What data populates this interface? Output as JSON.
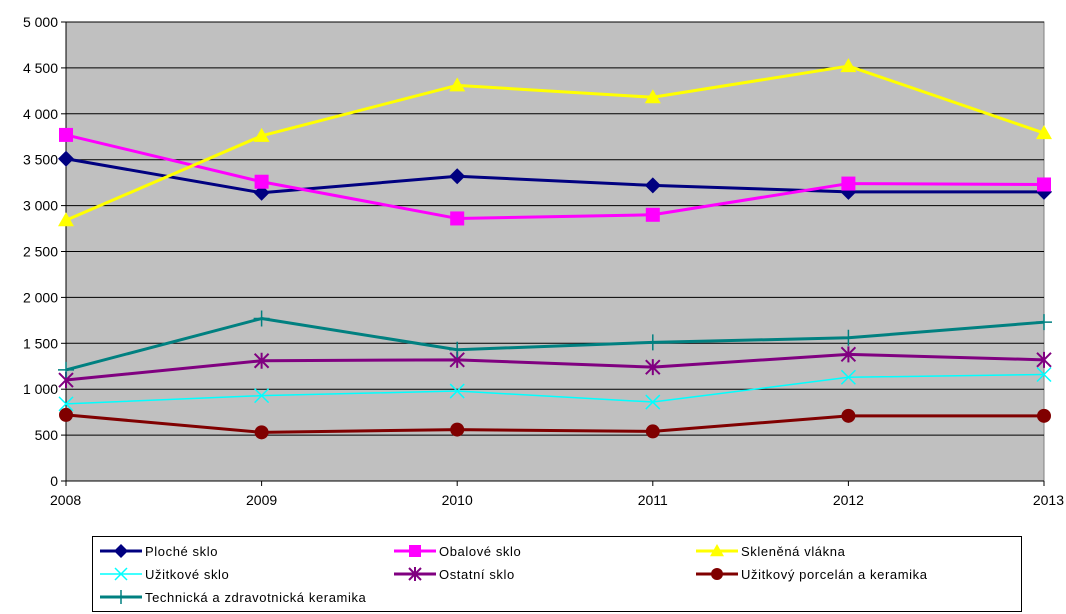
{
  "chart_data": {
    "type": "line",
    "x": [
      "2008",
      "2009",
      "2010",
      "2011",
      "2012",
      "2013"
    ],
    "ylim": [
      0,
      5000
    ],
    "yticks": [
      0,
      500,
      1000,
      1500,
      2000,
      2500,
      3000,
      3500,
      4000,
      4500,
      5000
    ],
    "ytick_labels": [
      "0",
      "500",
      "1 000",
      "1 500",
      "2 000",
      "2 500",
      "3 000",
      "3 500",
      "4 000",
      "4 500",
      "5 000"
    ],
    "grid": "horizontal",
    "plot_background": "#c0c0c0",
    "legend_position": "bottom",
    "series": [
      {
        "name": "Ploché sklo",
        "color": "#000080",
        "marker": "diamond",
        "width": 3,
        "values": [
          3510,
          3140,
          3320,
          3220,
          3150,
          3150
        ]
      },
      {
        "name": "Obalové sklo",
        "color": "#ff00ff",
        "marker": "square",
        "width": 3,
        "values": [
          3770,
          3260,
          2860,
          2900,
          3240,
          3230
        ]
      },
      {
        "name": "Skleněná vlákna",
        "color": "#ffff00",
        "marker": "triangle",
        "width": 3,
        "values": [
          2840,
          3760,
          4310,
          4180,
          4520,
          3790
        ]
      },
      {
        "name": "Užitkové sklo",
        "color": "#00ffff",
        "marker": "x",
        "width": 1.5,
        "values": [
          840,
          930,
          980,
          860,
          1130,
          1160
        ]
      },
      {
        "name": "Ostatní sklo",
        "color": "#800080",
        "marker": "star",
        "width": 3,
        "values": [
          1100,
          1310,
          1320,
          1240,
          1380,
          1320
        ]
      },
      {
        "name": "Užitkový porcelán a keramika",
        "color": "#800000",
        "marker": "circle",
        "width": 3,
        "values": [
          720,
          530,
          560,
          540,
          710,
          710
        ]
      },
      {
        "name": "Technická a zdravotnická keramika",
        "color": "#008080",
        "marker": "plus",
        "width": 3,
        "values": [
          1210,
          1770,
          1430,
          1510,
          1560,
          1730
        ]
      }
    ]
  }
}
